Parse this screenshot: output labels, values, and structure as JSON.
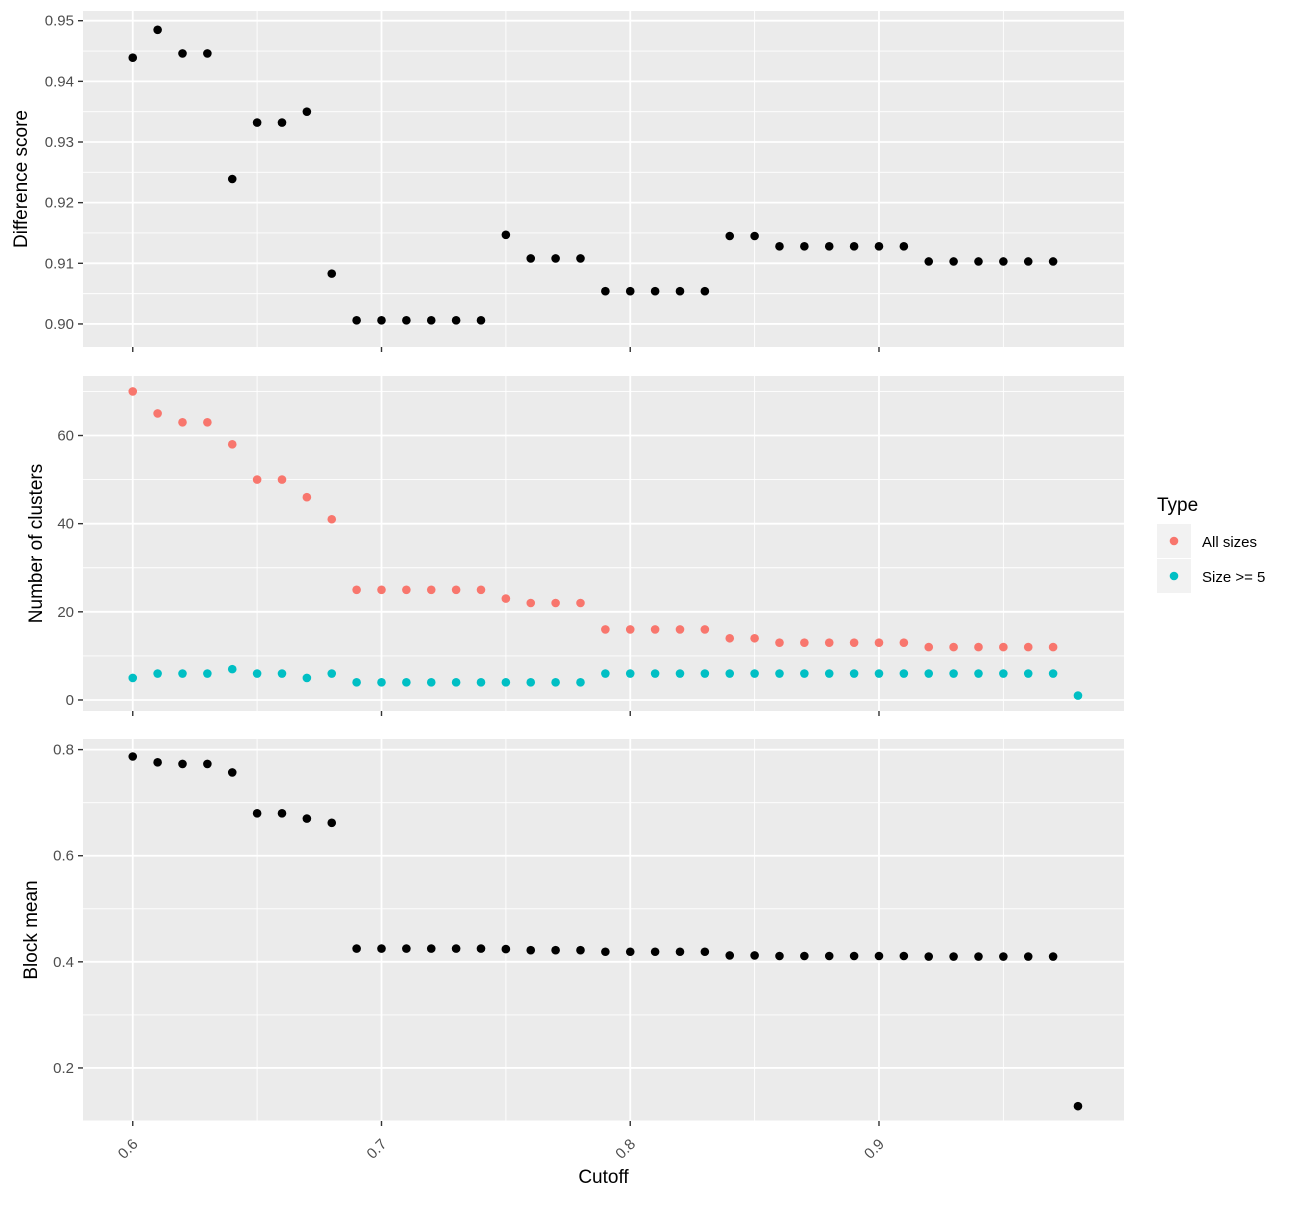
{
  "chart_data": [
    {
      "type": "scatter",
      "ylabel": "Difference score",
      "xlim": [
        0.58,
        0.9985
      ],
      "ylim": [
        0.8962,
        0.9516
      ],
      "yticks": [
        0.9,
        0.91,
        0.92,
        0.93,
        0.94,
        0.95
      ],
      "ytick_labels": [
        "0.90",
        "0.91",
        "0.92",
        "0.93",
        "0.94",
        "0.95"
      ],
      "grid": true,
      "series": [
        {
          "color": "#000000",
          "x": [
            0.6,
            0.61,
            0.62,
            0.63,
            0.64,
            0.65,
            0.66,
            0.67,
            0.68,
            0.69,
            0.7,
            0.71,
            0.72,
            0.73,
            0.74,
            0.75,
            0.76,
            0.77,
            0.78,
            0.79,
            0.8,
            0.81,
            0.82,
            0.83,
            0.84,
            0.85,
            0.86,
            0.87,
            0.88,
            0.89,
            0.9,
            0.91,
            0.92,
            0.93,
            0.94,
            0.95,
            0.96,
            0.97
          ],
          "y": [
            0.9439,
            0.9485,
            0.9446,
            0.9446,
            0.9239,
            0.9332,
            0.9332,
            0.935,
            0.9083,
            0.9006,
            0.9006,
            0.9006,
            0.9006,
            0.9006,
            0.9006,
            0.9147,
            0.9108,
            0.9108,
            0.9108,
            0.9054,
            0.9054,
            0.9054,
            0.9054,
            0.9054,
            0.9145,
            0.9145,
            0.9128,
            0.9128,
            0.9128,
            0.9128,
            0.9128,
            0.9128,
            0.9103,
            0.9103,
            0.9103,
            0.9103,
            0.9103,
            0.9103
          ]
        }
      ]
    },
    {
      "type": "scatter",
      "ylabel": "Number of clusters",
      "xlim": [
        0.58,
        0.9985
      ],
      "ylim": [
        -2.5,
        73.5
      ],
      "yticks": [
        0,
        20,
        40,
        60
      ],
      "ytick_labels": [
        "0",
        "20",
        "40",
        "60"
      ],
      "grid": true,
      "legend": {
        "title": "Type",
        "position": "right",
        "entries": [
          "All sizes",
          "Size >= 5"
        ]
      },
      "series": [
        {
          "name": "All sizes",
          "color": "#F8766D",
          "x": [
            0.6,
            0.61,
            0.62,
            0.63,
            0.64,
            0.65,
            0.66,
            0.67,
            0.68,
            0.69,
            0.7,
            0.71,
            0.72,
            0.73,
            0.74,
            0.75,
            0.76,
            0.77,
            0.78,
            0.79,
            0.8,
            0.81,
            0.82,
            0.83,
            0.84,
            0.85,
            0.86,
            0.87,
            0.88,
            0.89,
            0.9,
            0.91,
            0.92,
            0.93,
            0.94,
            0.95,
            0.96,
            0.97
          ],
          "y": [
            70,
            65,
            63,
            63,
            58,
            50,
            50,
            46,
            41,
            25,
            25,
            25,
            25,
            25,
            25,
            23,
            22,
            22,
            22,
            16,
            16,
            16,
            16,
            16,
            14,
            14,
            13,
            13,
            13,
            13,
            13,
            13,
            12,
            12,
            12,
            12,
            12,
            12
          ]
        },
        {
          "name": "Size >= 5",
          "color": "#00BFC4",
          "x": [
            0.6,
            0.61,
            0.62,
            0.63,
            0.64,
            0.65,
            0.66,
            0.67,
            0.68,
            0.69,
            0.7,
            0.71,
            0.72,
            0.73,
            0.74,
            0.75,
            0.76,
            0.77,
            0.78,
            0.79,
            0.8,
            0.81,
            0.82,
            0.83,
            0.84,
            0.85,
            0.86,
            0.87,
            0.88,
            0.89,
            0.9,
            0.91,
            0.92,
            0.93,
            0.94,
            0.95,
            0.96,
            0.97,
            0.98
          ],
          "y": [
            5,
            6,
            6,
            6,
            7,
            6,
            6,
            5,
            6,
            4,
            4,
            4,
            4,
            4,
            4,
            4,
            4,
            4,
            4,
            6,
            6,
            6,
            6,
            6,
            6,
            6,
            6,
            6,
            6,
            6,
            6,
            6,
            6,
            6,
            6,
            6,
            6,
            6,
            1
          ]
        }
      ]
    },
    {
      "type": "scatter",
      "ylabel": "Block mean",
      "xlabel": "Cutoff",
      "xlim": [
        0.58,
        0.9985
      ],
      "ylim": [
        0.1,
        0.82
      ],
      "xticks": [
        0.6,
        0.7,
        0.8,
        0.9
      ],
      "xtick_labels": [
        "0.6",
        "0.7",
        "0.8",
        "0.9"
      ],
      "yticks": [
        0.2,
        0.4,
        0.6,
        0.8
      ],
      "ytick_labels": [
        "0.2",
        "0.4",
        "0.6",
        "0.8"
      ],
      "grid": true,
      "series": [
        {
          "color": "#000000",
          "x": [
            0.6,
            0.61,
            0.62,
            0.63,
            0.64,
            0.65,
            0.66,
            0.67,
            0.68,
            0.69,
            0.7,
            0.71,
            0.72,
            0.73,
            0.74,
            0.75,
            0.76,
            0.77,
            0.78,
            0.79,
            0.8,
            0.81,
            0.82,
            0.83,
            0.84,
            0.85,
            0.86,
            0.87,
            0.88,
            0.89,
            0.9,
            0.91,
            0.92,
            0.93,
            0.94,
            0.95,
            0.96,
            0.97,
            0.98
          ],
          "y": [
            0.787,
            0.776,
            0.773,
            0.773,
            0.757,
            0.68,
            0.68,
            0.67,
            0.662,
            0.425,
            0.425,
            0.425,
            0.425,
            0.425,
            0.425,
            0.424,
            0.422,
            0.422,
            0.422,
            0.419,
            0.419,
            0.419,
            0.419,
            0.419,
            0.412,
            0.412,
            0.411,
            0.411,
            0.411,
            0.411,
            0.411,
            0.411,
            0.41,
            0.41,
            0.41,
            0.41,
            0.41,
            0.41,
            0.128
          ]
        }
      ]
    }
  ]
}
